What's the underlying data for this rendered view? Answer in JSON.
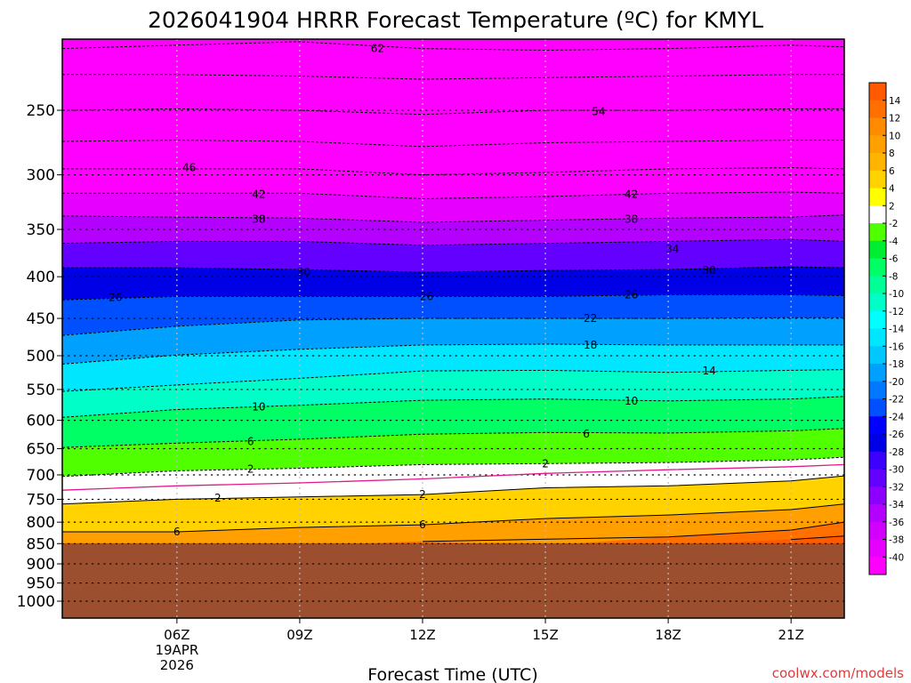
{
  "title": "2026041904 HRRR Forecast Temperature (ºC) for KMYL",
  "credit": "coolwx.com/models",
  "chart_data": {
    "type": "heatmap",
    "title": "2026041904 HRRR Forecast Temperature (ºC) for KMYL",
    "xlabel": "Forecast Time (UTC)",
    "ylabel": "",
    "x_range_hours": [
      3.2,
      22.3
    ],
    "y_range_hPa": [
      200,
      1000
    ],
    "y_scale": "log-pressure",
    "grid": true,
    "x_ticks": [
      {
        "hour": 6,
        "label": "06Z",
        "sub": [
          "19APR",
          "2026"
        ]
      },
      {
        "hour": 9,
        "label": "09Z"
      },
      {
        "hour": 12,
        "label": "12Z"
      },
      {
        "hour": 15,
        "label": "15Z"
      },
      {
        "hour": 18,
        "label": "18Z"
      },
      {
        "hour": 21,
        "label": "21Z"
      }
    ],
    "y_ticks": [
      250,
      300,
      350,
      400,
      450,
      500,
      550,
      600,
      650,
      700,
      750,
      800,
      850,
      900,
      950,
      1000
    ],
    "ground_level_hPa": 849,
    "ground_color": "#9b4f2e",
    "contour_hours": [
      3.2,
      6,
      9,
      12,
      15,
      18,
      21,
      22.3
    ],
    "contours": [
      {
        "t": -62,
        "p": [
          210,
          208,
          206,
          210,
          211,
          210,
          208,
          209
        ]
      },
      {
        "t": -58,
        "p": [
          226,
          226,
          227,
          229,
          228,
          227,
          226,
          226
        ]
      },
      {
        "t": -54,
        "p": [
          250,
          249,
          250,
          253,
          250,
          250,
          249,
          249
        ]
      },
      {
        "t": -50,
        "p": [
          273,
          272,
          273,
          277,
          274,
          273,
          272,
          272
        ]
      },
      {
        "t": -46,
        "p": [
          295,
          295,
          295,
          300,
          298,
          295,
          294,
          295
        ]
      },
      {
        "t": -42,
        "p": [
          316,
          316,
          316,
          321,
          319,
          316,
          315,
          316
        ]
      },
      {
        "t": -38,
        "p": [
          337,
          338,
          339,
          343,
          341,
          339,
          338,
          336
        ]
      },
      {
        "t": -34,
        "p": [
          364,
          362,
          362,
          366,
          364,
          362,
          360,
          362
        ]
      },
      {
        "t": -30,
        "p": [
          390,
          390,
          392,
          395,
          393,
          392,
          389,
          390
        ]
      },
      {
        "t": -26,
        "p": [
          427,
          423,
          423,
          423,
          423,
          421,
          421,
          422
        ]
      },
      {
        "t": -22,
        "p": [
          472,
          460,
          452,
          450,
          450,
          450,
          449,
          449
        ]
      },
      {
        "t": -18,
        "p": [
          512,
          499,
          491,
          485,
          484,
          485,
          485,
          485
        ]
      },
      {
        "t": -14,
        "p": [
          553,
          543,
          533,
          522,
          521,
          524,
          521,
          520
        ]
      },
      {
        "t": -10,
        "p": [
          595,
          582,
          575,
          567,
          565,
          568,
          565,
          561
        ]
      },
      {
        "t": -6,
        "p": [
          648,
          640,
          633,
          624,
          621,
          622,
          618,
          614
        ]
      },
      {
        "t": -2,
        "p": [
          703,
          692,
          687,
          680,
          678,
          676,
          671,
          666
        ]
      },
      {
        "t": 0,
        "p": [
          731,
          722,
          716,
          708,
          697,
          690,
          684,
          680
        ]
      },
      {
        "t": 2,
        "p": [
          760,
          750,
          745,
          740,
          726,
          722,
          712,
          702
        ]
      },
      {
        "t": 6,
        "p": [
          822,
          822,
          812,
          806,
          792,
          784,
          772,
          760
        ]
      },
      {
        "t": 10,
        "p": [
          856,
          856,
          856,
          845,
          856,
          834,
          818,
          800
        ]
      },
      {
        "t": 14,
        "p": [
          856,
          856,
          856,
          856,
          856,
          856,
          840,
          832
        ]
      }
    ],
    "labels": [
      {
        "text": "62",
        "h": 10.9,
        "p": 210
      },
      {
        "text": "54",
        "h": 16.3,
        "p": 251
      },
      {
        "text": "46",
        "h": 6.3,
        "p": 294
      },
      {
        "text": "42",
        "h": 8.0,
        "p": 317
      },
      {
        "text": "42",
        "h": 17.1,
        "p": 317
      },
      {
        "text": "38",
        "h": 8.0,
        "p": 340
      },
      {
        "text": "38",
        "h": 17.1,
        "p": 340
      },
      {
        "text": "34",
        "h": 18.1,
        "p": 370
      },
      {
        "text": "30",
        "h": 9.1,
        "p": 395
      },
      {
        "text": "30",
        "h": 19.0,
        "p": 393
      },
      {
        "text": "26",
        "h": 4.5,
        "p": 424
      },
      {
        "text": "26",
        "h": 12.1,
        "p": 423
      },
      {
        "text": "26",
        "h": 17.1,
        "p": 421
      },
      {
        "text": "22",
        "h": 16.1,
        "p": 450
      },
      {
        "text": "18",
        "h": 16.1,
        "p": 485
      },
      {
        "text": "14",
        "h": 19.0,
        "p": 522
      },
      {
        "text": "10",
        "h": 8.0,
        "p": 578
      },
      {
        "text": "10",
        "h": 17.1,
        "p": 568
      },
      {
        "text": "6",
        "h": 7.8,
        "p": 637
      },
      {
        "text": "6",
        "h": 16.0,
        "p": 624
      },
      {
        "text": "2",
        "h": 7.8,
        "p": 689
      },
      {
        "text": "2",
        "h": 15.0,
        "p": 678
      },
      {
        "text": "2",
        "h": 7.0,
        "p": 747
      },
      {
        "text": "2",
        "h": 12.0,
        "p": 740
      },
      {
        "text": "6",
        "h": 6.0,
        "p": 822
      },
      {
        "text": "6",
        "h": 12.0,
        "p": 806
      }
    ],
    "colorbar": {
      "ticks": [
        14,
        12,
        10,
        8,
        6,
        4,
        2,
        -2,
        -4,
        -6,
        -8,
        -10,
        -12,
        -14,
        -16,
        -18,
        -20,
        -22,
        -24,
        -26,
        -28,
        -30,
        -32,
        -34,
        -36,
        -38,
        -40
      ],
      "bands": [
        {
          "from": 14,
          "to": 16,
          "color": "#ff5a00"
        },
        {
          "from": 12,
          "to": 14,
          "color": "#ff7000"
        },
        {
          "from": 10,
          "to": 12,
          "color": "#ff8c00"
        },
        {
          "from": 8,
          "to": 10,
          "color": "#ffa000"
        },
        {
          "from": 6,
          "to": 8,
          "color": "#ffb400"
        },
        {
          "from": 4,
          "to": 6,
          "color": "#ffd200"
        },
        {
          "from": 2,
          "to": 4,
          "color": "#ffff00"
        },
        {
          "from": -2,
          "to": 2,
          "color": "#ffffff"
        },
        {
          "from": -4,
          "to": -2,
          "color": "#50ff00"
        },
        {
          "from": -6,
          "to": -4,
          "color": "#00ee32"
        },
        {
          "from": -8,
          "to": -6,
          "color": "#00ff64"
        },
        {
          "from": -10,
          "to": -8,
          "color": "#00ff96"
        },
        {
          "from": -12,
          "to": -10,
          "color": "#00ffc8"
        },
        {
          "from": -14,
          "to": -12,
          "color": "#00ffff"
        },
        {
          "from": -16,
          "to": -14,
          "color": "#00e6ff"
        },
        {
          "from": -18,
          "to": -16,
          "color": "#00c8ff"
        },
        {
          "from": -20,
          "to": -18,
          "color": "#00a0ff"
        },
        {
          "from": -22,
          "to": -20,
          "color": "#0078ff"
        },
        {
          "from": -24,
          "to": -22,
          "color": "#0050ff"
        },
        {
          "from": -26,
          "to": -24,
          "color": "#0000ff"
        },
        {
          "from": -28,
          "to": -26,
          "color": "#0000e6"
        },
        {
          "from": -30,
          "to": -28,
          "color": "#3c00ff"
        },
        {
          "from": -32,
          "to": -30,
          "color": "#6400ff"
        },
        {
          "from": -34,
          "to": -32,
          "color": "#8c00ff"
        },
        {
          "from": -36,
          "to": -34,
          "color": "#b400ff"
        },
        {
          "from": -38,
          "to": -36,
          "color": "#d200ff"
        },
        {
          "from": -40,
          "to": -38,
          "color": "#e600ff"
        },
        {
          "from": -42,
          "to": -40,
          "color": "#ff00ff"
        }
      ],
      "below_min_color": "#ff00ff"
    }
  }
}
